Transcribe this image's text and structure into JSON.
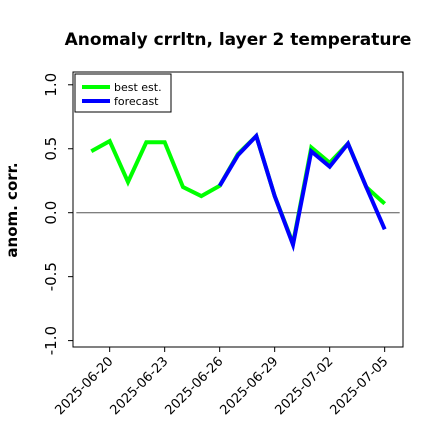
{
  "chart_data": {
    "type": "line",
    "title": "Anomaly crrltn, layer 2 temperature",
    "xlabel": "",
    "ylabel": "anom. corr.",
    "x": [
      "2025-06-19",
      "2025-06-20",
      "2025-06-21",
      "2025-06-22",
      "2025-06-23",
      "2025-06-24",
      "2025-06-25",
      "2025-06-26",
      "2025-06-27",
      "2025-06-28",
      "2025-06-29",
      "2025-06-30",
      "2025-07-01",
      "2025-07-02",
      "2025-07-03",
      "2025-07-04",
      "2025-07-05"
    ],
    "x_ticks": [
      "2025-06-20",
      "2025-06-23",
      "2025-06-26",
      "2025-06-29",
      "2025-07-02",
      "2025-07-05"
    ],
    "x_tick_highlight": "2025-06-26",
    "x_tick_highlight_color": "#1e8c1e",
    "xlim": [
      "2025-06-18",
      "2025-07-06"
    ],
    "ylim": [
      -1.05,
      1.1
    ],
    "y_ticks": [
      "1.0",
      "0.5",
      "0.0",
      "-0.5",
      "-1.0"
    ],
    "y_tick_values": [
      1.0,
      0.5,
      0.0,
      -0.5,
      -1.0
    ],
    "reference_line": 0.0,
    "grid": false,
    "legend_position": "top-left",
    "series": [
      {
        "name": "best est.",
        "color": "#00ff00",
        "values": [
          0.48,
          0.56,
          0.24,
          0.55,
          0.55,
          0.2,
          0.13,
          0.21,
          0.46,
          0.6,
          0.13,
          -0.24,
          0.51,
          0.39,
          0.54,
          0.2,
          0.07
        ]
      },
      {
        "name": "forecast",
        "color": "#0000ff",
        "values": [
          null,
          null,
          null,
          null,
          null,
          null,
          null,
          0.21,
          0.45,
          0.6,
          0.13,
          -0.25,
          0.48,
          0.36,
          0.54,
          0.2,
          -0.13
        ]
      }
    ]
  }
}
